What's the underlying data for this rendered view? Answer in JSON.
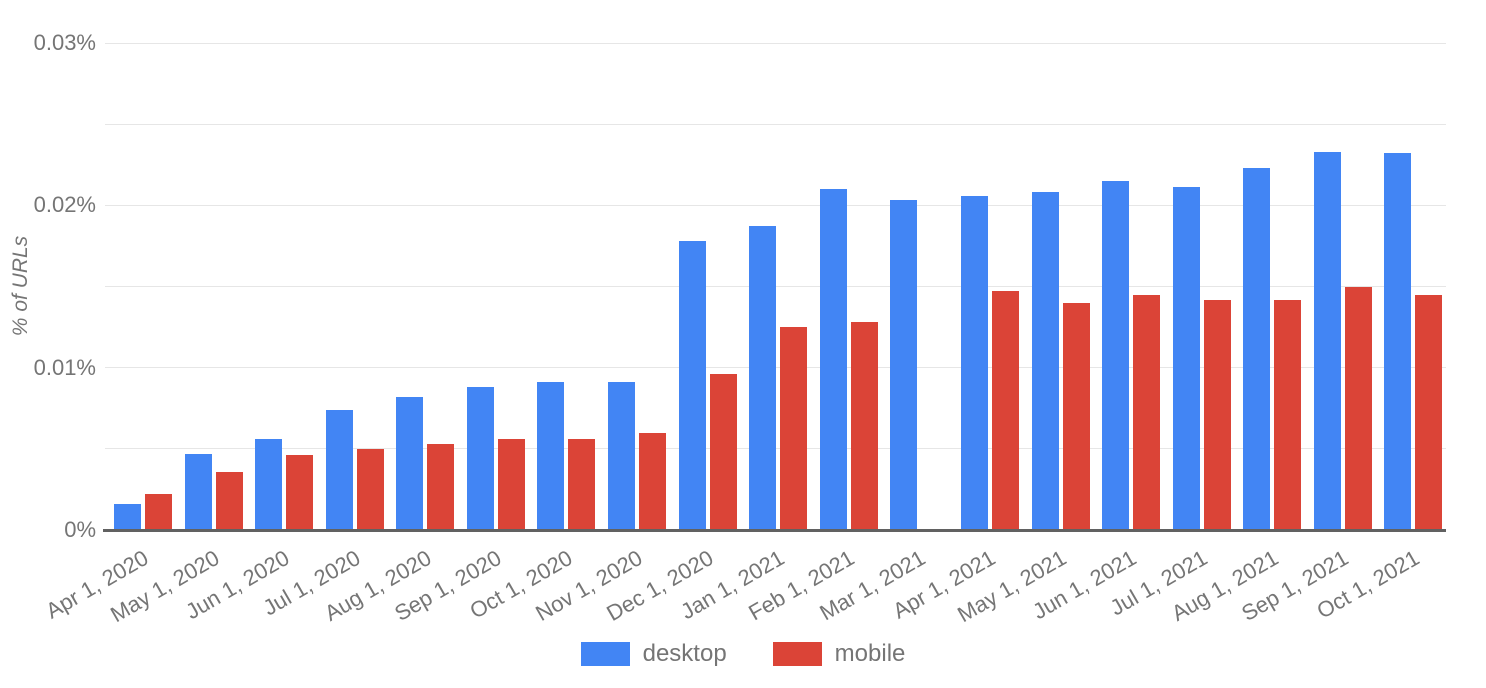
{
  "chart_data": {
    "type": "bar",
    "title": "",
    "xlabel": "",
    "ylabel": "% of URLs",
    "units": "percent",
    "grid": true,
    "legend_position": "bottom",
    "categories": [
      "Apr 1, 2020",
      "May 1, 2020",
      "Jun 1, 2020",
      "Jul 1, 2020",
      "Aug 1, 2020",
      "Sep 1, 2020",
      "Oct 1, 2020",
      "Nov 1, 2020",
      "Dec 1, 2020",
      "Jan 1, 2021",
      "Feb 1, 2021",
      "Mar 1, 2021",
      "Apr 1, 2021",
      "May 1, 2021",
      "Jun 1, 2021",
      "Jul 1, 2021",
      "Aug 1, 2021",
      "Sep 1, 2021",
      "Oct 1, 2021"
    ],
    "series": [
      {
        "name": "desktop",
        "color": "#4285F4",
        "values": [
          0.0016,
          0.0047,
          0.0056,
          0.0074,
          0.0082,
          0.0088,
          0.0091,
          0.0091,
          0.0178,
          0.0187,
          0.021,
          0.0203,
          0.0206,
          0.0208,
          0.0215,
          0.0211,
          0.0223,
          0.0233,
          0.0232
        ]
      },
      {
        "name": "mobile",
        "color": "#DB4437",
        "values": [
          0.0022,
          0.0036,
          0.0046,
          0.005,
          0.0053,
          0.0056,
          0.0056,
          0.006,
          0.0096,
          0.0125,
          0.0128,
          null,
          0.0147,
          0.014,
          0.0145,
          0.0142,
          0.0142,
          0.015,
          0.0145
        ]
      }
    ],
    "y_axis": {
      "min": 0,
      "max": 0.03,
      "minor_grid_step": 0.005,
      "ticks": [
        {
          "value": 0,
          "label": "0%"
        },
        {
          "value": 0.01,
          "label": "0.01%"
        },
        {
          "value": 0.02,
          "label": "0.02%"
        },
        {
          "value": 0.03,
          "label": "0.03%"
        }
      ]
    }
  },
  "colors": {
    "desktop": "#4285F4",
    "mobile": "#DB4437",
    "gridline": "#E6E6E6",
    "axis_line": "#616161",
    "label_text": "#757575",
    "background": "#FFFFFF"
  }
}
